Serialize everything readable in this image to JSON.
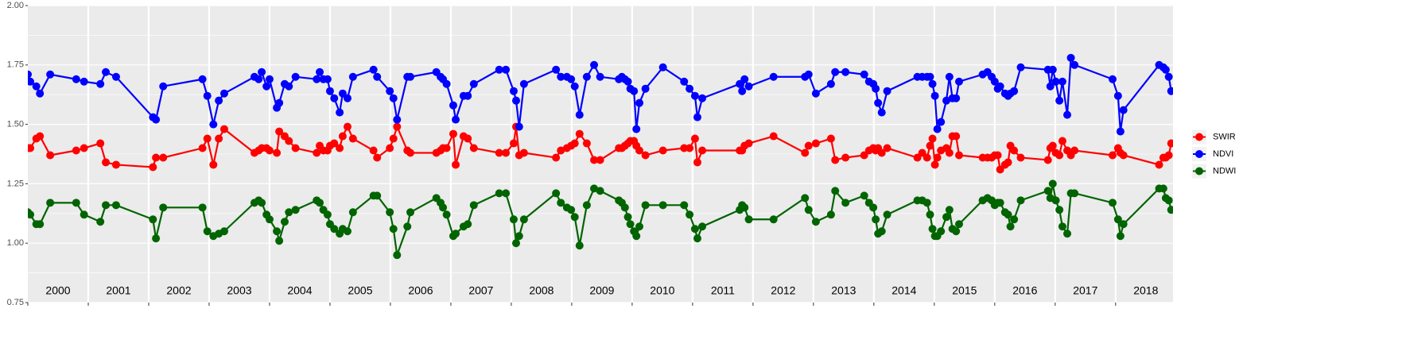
{
  "chart_data": {
    "type": "line",
    "x": [
      2000.0,
      2000.04,
      2000.14,
      2000.2,
      2000.37,
      2000.8,
      2000.93,
      2001.2,
      2001.29,
      2001.46,
      2002.07,
      2002.12,
      2002.24,
      2002.89,
      2002.97,
      2003.07,
      2003.16,
      2003.25,
      2003.75,
      2003.82,
      2003.87,
      2003.95,
      2004.0,
      2004.12,
      2004.16,
      2004.25,
      2004.32,
      2004.43,
      2004.78,
      2004.83,
      2004.89,
      2004.96,
      2005.0,
      2005.07,
      2005.16,
      2005.21,
      2005.29,
      2005.38,
      2005.72,
      2005.78,
      2005.99,
      2006.05,
      2006.11,
      2006.28,
      2006.33,
      2006.76,
      2006.83,
      2006.87,
      2006.93,
      2007.04,
      2007.08,
      2007.21,
      2007.28,
      2007.38,
      2007.8,
      2007.91,
      2008.04,
      2008.08,
      2008.13,
      2008.21,
      2008.74,
      2008.82,
      2008.92,
      2008.99,
      2009.05,
      2009.13,
      2009.25,
      2009.37,
      2009.47,
      2009.78,
      2009.83,
      2009.88,
      2009.93,
      2009.97,
      2010.03,
      2010.07,
      2010.12,
      2010.22,
      2010.51,
      2010.86,
      2010.95,
      2011.04,
      2011.08,
      2011.16,
      2011.78,
      2011.82,
      2011.86,
      2011.93,
      2012.34,
      2012.86,
      2012.92,
      2013.04,
      2013.29,
      2013.36,
      2013.53,
      2013.84,
      2013.92,
      2013.99,
      2014.03,
      2014.07,
      2014.13,
      2014.22,
      2014.72,
      2014.8,
      2014.88,
      2014.93,
      2014.97,
      2015.01,
      2015.05,
      2015.11,
      2015.2,
      2015.25,
      2015.3,
      2015.36,
      2015.41,
      2015.8,
      2015.88,
      2015.95,
      2016.0,
      2016.05,
      2016.09,
      2016.17,
      2016.22,
      2016.26,
      2016.32,
      2016.43,
      2016.88,
      2016.92,
      2016.96,
      2017.01,
      2017.07,
      2017.12,
      2017.2,
      2017.26,
      2017.32,
      2017.95,
      2018.04,
      2018.08,
      2018.13,
      2018.72,
      2018.79,
      2018.83,
      2018.88,
      2018.92
    ],
    "series": [
      {
        "name": "SWIR",
        "color": "#ff0000",
        "values": [
          1.4,
          1.4,
          1.44,
          1.45,
          1.37,
          1.39,
          1.4,
          1.42,
          1.34,
          1.33,
          1.32,
          1.36,
          1.36,
          1.4,
          1.44,
          1.33,
          1.44,
          1.48,
          1.38,
          1.39,
          1.4,
          1.4,
          1.39,
          1.38,
          1.47,
          1.45,
          1.43,
          1.4,
          1.38,
          1.41,
          1.39,
          1.39,
          1.41,
          1.42,
          1.4,
          1.45,
          1.49,
          1.44,
          1.39,
          1.36,
          1.4,
          1.44,
          1.49,
          1.39,
          1.38,
          1.38,
          1.39,
          1.4,
          1.4,
          1.46,
          1.33,
          1.45,
          1.44,
          1.4,
          1.38,
          1.38,
          1.42,
          1.49,
          1.37,
          1.38,
          1.36,
          1.39,
          1.4,
          1.41,
          1.42,
          1.46,
          1.42,
          1.35,
          1.35,
          1.4,
          1.4,
          1.41,
          1.42,
          1.43,
          1.43,
          1.41,
          1.39,
          1.37,
          1.39,
          1.4,
          1.4,
          1.44,
          1.34,
          1.39,
          1.39,
          1.39,
          1.41,
          1.42,
          1.45,
          1.38,
          1.41,
          1.42,
          1.44,
          1.35,
          1.36,
          1.37,
          1.39,
          1.4,
          1.39,
          1.4,
          1.38,
          1.4,
          1.36,
          1.38,
          1.36,
          1.41,
          1.44,
          1.33,
          1.36,
          1.39,
          1.4,
          1.38,
          1.45,
          1.45,
          1.37,
          1.36,
          1.36,
          1.36,
          1.37,
          1.37,
          1.31,
          1.33,
          1.34,
          1.41,
          1.39,
          1.36,
          1.35,
          1.4,
          1.41,
          1.38,
          1.37,
          1.43,
          1.39,
          1.37,
          1.39,
          1.37,
          1.4,
          1.38,
          1.37,
          1.33,
          1.36,
          1.36,
          1.37,
          1.42
        ]
      },
      {
        "name": "NDVI",
        "color": "#0000ff",
        "values": [
          1.71,
          1.68,
          1.66,
          1.63,
          1.71,
          1.69,
          1.68,
          1.67,
          1.72,
          1.7,
          1.53,
          1.52,
          1.66,
          1.69,
          1.62,
          1.5,
          1.6,
          1.63,
          1.7,
          1.69,
          1.72,
          1.66,
          1.69,
          1.57,
          1.59,
          1.67,
          1.66,
          1.7,
          1.69,
          1.72,
          1.69,
          1.69,
          1.64,
          1.61,
          1.55,
          1.63,
          1.61,
          1.7,
          1.73,
          1.7,
          1.64,
          1.61,
          1.52,
          1.7,
          1.7,
          1.72,
          1.7,
          1.69,
          1.67,
          1.58,
          1.52,
          1.62,
          1.62,
          1.67,
          1.73,
          1.73,
          1.64,
          1.6,
          1.49,
          1.67,
          1.73,
          1.7,
          1.7,
          1.69,
          1.66,
          1.54,
          1.7,
          1.75,
          1.7,
          1.69,
          1.7,
          1.69,
          1.68,
          1.65,
          1.64,
          1.48,
          1.59,
          1.65,
          1.74,
          1.68,
          1.65,
          1.62,
          1.53,
          1.61,
          1.67,
          1.64,
          1.69,
          1.66,
          1.7,
          1.7,
          1.71,
          1.63,
          1.67,
          1.72,
          1.72,
          1.71,
          1.68,
          1.67,
          1.65,
          1.59,
          1.55,
          1.64,
          1.7,
          1.7,
          1.7,
          1.7,
          1.67,
          1.62,
          1.48,
          1.51,
          1.6,
          1.7,
          1.61,
          1.61,
          1.68,
          1.71,
          1.72,
          1.7,
          1.68,
          1.65,
          1.66,
          1.63,
          1.62,
          1.63,
          1.64,
          1.74,
          1.73,
          1.66,
          1.73,
          1.68,
          1.6,
          1.68,
          1.54,
          1.78,
          1.75,
          1.69,
          1.62,
          1.47,
          1.56,
          1.75,
          1.74,
          1.73,
          1.7,
          1.64
        ]
      },
      {
        "name": "NDWI",
        "color": "#006400",
        "values": [
          1.13,
          1.12,
          1.08,
          1.08,
          1.17,
          1.17,
          1.12,
          1.09,
          1.16,
          1.16,
          1.1,
          1.02,
          1.15,
          1.15,
          1.05,
          1.03,
          1.04,
          1.05,
          1.17,
          1.18,
          1.17,
          1.12,
          1.1,
          1.05,
          1.01,
          1.09,
          1.13,
          1.14,
          1.18,
          1.17,
          1.14,
          1.12,
          1.08,
          1.06,
          1.04,
          1.06,
          1.05,
          1.13,
          1.2,
          1.2,
          1.13,
          1.06,
          0.95,
          1.07,
          1.13,
          1.19,
          1.17,
          1.15,
          1.12,
          1.03,
          1.04,
          1.07,
          1.08,
          1.16,
          1.21,
          1.21,
          1.1,
          1.0,
          1.03,
          1.1,
          1.21,
          1.17,
          1.15,
          1.14,
          1.11,
          0.99,
          1.16,
          1.23,
          1.22,
          1.18,
          1.17,
          1.15,
          1.11,
          1.08,
          1.05,
          1.03,
          1.07,
          1.16,
          1.16,
          1.16,
          1.12,
          1.06,
          1.02,
          1.07,
          1.14,
          1.16,
          1.15,
          1.1,
          1.1,
          1.19,
          1.14,
          1.09,
          1.12,
          1.22,
          1.17,
          1.2,
          1.17,
          1.15,
          1.1,
          1.04,
          1.05,
          1.12,
          1.18,
          1.18,
          1.17,
          1.12,
          1.06,
          1.03,
          1.03,
          1.05,
          1.11,
          1.14,
          1.06,
          1.05,
          1.08,
          1.18,
          1.19,
          1.18,
          1.16,
          1.17,
          1.17,
          1.13,
          1.12,
          1.07,
          1.1,
          1.18,
          1.22,
          1.19,
          1.25,
          1.18,
          1.14,
          1.07,
          1.04,
          1.21,
          1.21,
          1.17,
          1.1,
          1.03,
          1.08,
          1.23,
          1.23,
          1.19,
          1.18,
          1.14
        ]
      }
    ],
    "xlim": [
      2000,
      2018.95
    ],
    "xticks": [
      2000,
      2001,
      2002,
      2003,
      2004,
      2005,
      2006,
      2007,
      2008,
      2009,
      2010,
      2011,
      2012,
      2013,
      2014,
      2015,
      2016,
      2017,
      2018
    ],
    "annotations": [
      "2000",
      "2001",
      "2002",
      "2003",
      "2004",
      "2005",
      "2006",
      "2007",
      "2008",
      "2009",
      "2010",
      "2011",
      "2012",
      "2013",
      "2014",
      "2015",
      "2016",
      "2017",
      "2018"
    ],
    "ylim": [
      0.75,
      2.0
    ],
    "yticks": [
      {
        "value": 0.75,
        "label": "0.75"
      },
      {
        "value": 1,
        "label": "1.00"
      },
      1.25,
      {
        "value": 1.5,
        "label": "1.50"
      },
      1.75,
      {
        "value": 2,
        "label": "2.00"
      }
    ],
    "grid": true,
    "legend": "right"
  }
}
